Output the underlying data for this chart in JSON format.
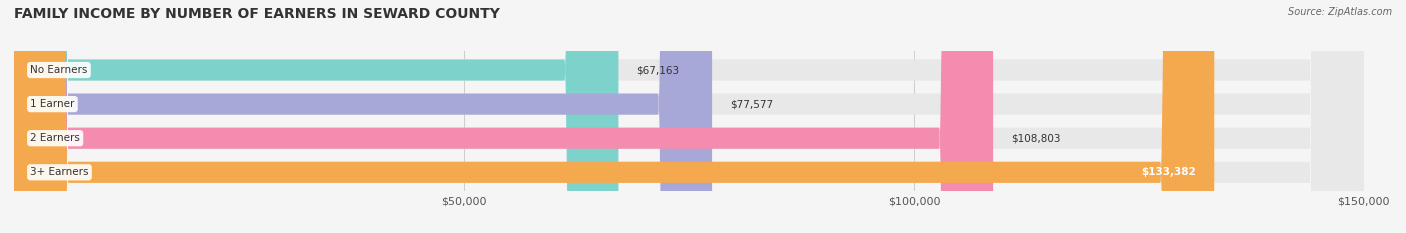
{
  "title": "FAMILY INCOME BY NUMBER OF EARNERS IN SEWARD COUNTY",
  "source": "Source: ZipAtlas.com",
  "categories": [
    "No Earners",
    "1 Earner",
    "2 Earners",
    "3+ Earners"
  ],
  "values": [
    67163,
    77577,
    108803,
    133382
  ],
  "bar_colors": [
    "#7dd3cc",
    "#a8a8d8",
    "#f48cb0",
    "#f5a94e"
  ],
  "bar_bg_color": "#e8e8e8",
  "label_colors": [
    "#333333",
    "#333333",
    "#333333",
    "#ffffff"
  ],
  "xlim": [
    0,
    150000
  ],
  "xticks": [
    50000,
    100000,
    150000
  ],
  "xtick_labels": [
    "$50,000",
    "$100,000",
    "$150,000"
  ],
  "figsize": [
    14.06,
    2.33
  ],
  "dpi": 100,
  "title_fontsize": 10,
  "bar_height": 0.62
}
